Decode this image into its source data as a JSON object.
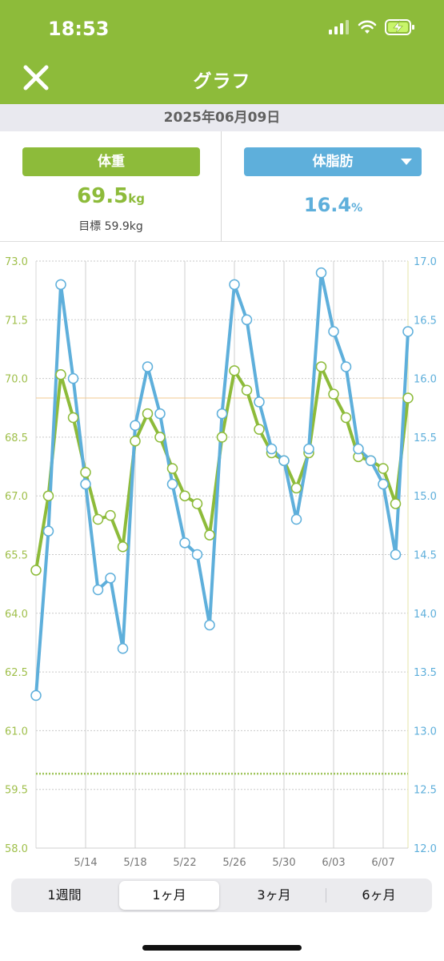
{
  "status_bar": {
    "time": "18:53"
  },
  "header": {
    "title": "グラフ",
    "close_icon": "close-icon"
  },
  "date": "2025年06月09日",
  "weight_panel": {
    "button_label": "体重",
    "value": "69.5",
    "unit": "kg",
    "target": "目標 59.9kg"
  },
  "fat_panel": {
    "button_label": "体脂肪",
    "value": "16.4",
    "unit": "%"
  },
  "colors": {
    "weight": "#8dbb3a",
    "fat": "#5eafdb",
    "header": "#8dbb3a"
  },
  "chart_data": {
    "type": "line",
    "x": [
      "5/10",
      "5/11",
      "5/12",
      "5/13",
      "5/14",
      "5/15",
      "5/16",
      "5/17",
      "5/18",
      "5/19",
      "5/20",
      "5/21",
      "5/22",
      "5/23",
      "5/24",
      "5/25",
      "5/26",
      "5/27",
      "5/28",
      "5/29",
      "5/30",
      "5/31",
      "6/01",
      "6/02",
      "6/03",
      "6/04",
      "6/05",
      "6/06",
      "6/07",
      "6/08",
      "6/09"
    ],
    "x_ticks": [
      "5/14",
      "5/18",
      "5/22",
      "5/26",
      "5/30",
      "6/03",
      "6/07"
    ],
    "y_left": {
      "ticks": [
        "73.0",
        "71.5",
        "70.0",
        "68.5",
        "67.0",
        "65.5",
        "64.0",
        "62.5",
        "61.0",
        "59.5",
        "58.0"
      ],
      "range": [
        58.0,
        73.0
      ]
    },
    "y_right": {
      "ticks": [
        "17.0",
        "16.5",
        "16.0",
        "15.5",
        "15.0",
        "14.5",
        "14.0",
        "13.5",
        "13.0",
        "12.5",
        "12.0"
      ],
      "range": [
        12.0,
        17.0
      ]
    },
    "target_weight": 59.9,
    "current_reference_weight": 69.5,
    "series": [
      {
        "axis": "left",
        "values": [
          65.1,
          67.0,
          70.1,
          69.0,
          67.6,
          66.4,
          66.5,
          65.7,
          68.4,
          69.1,
          68.5,
          67.7,
          67.0,
          66.8,
          66.0,
          68.5,
          70.2,
          69.7,
          68.7,
          68.1,
          67.9,
          67.2,
          68.1,
          70.3,
          69.6,
          69.0,
          68.0,
          67.9,
          67.7,
          66.8,
          69.5
        ]
      },
      {
        "axis": "right",
        "values": [
          13.3,
          14.7,
          16.8,
          16.0,
          15.1,
          14.2,
          14.3,
          13.7,
          15.6,
          16.1,
          15.7,
          15.1,
          14.6,
          14.5,
          13.9,
          15.7,
          16.8,
          16.5,
          15.8,
          15.4,
          15.3,
          14.8,
          15.4,
          16.9,
          16.4,
          16.1,
          15.4,
          15.3,
          15.1,
          14.5,
          16.4
        ]
      }
    ]
  },
  "period_tabs": [
    "1週間",
    "1ヶ月",
    "3ヶ月",
    "6ヶ月"
  ],
  "active_tab": "1ヶ月"
}
